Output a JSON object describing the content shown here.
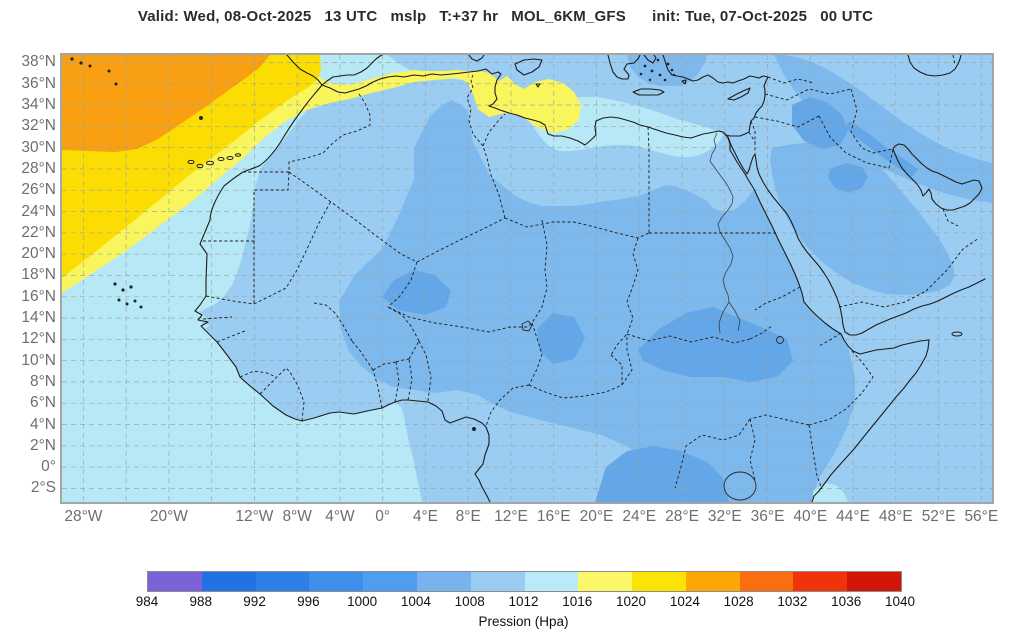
{
  "title": "Valid: Wed, 08-Oct-2025   13 UTC   mslp   T:+37 hr   MOL_6KM_GFS      init: Tue, 07-Oct-2025   00 UTC",
  "map": {
    "y_ticks": [
      {
        "lat": 38,
        "label": "38°N"
      },
      {
        "lat": 36,
        "label": "36°N"
      },
      {
        "lat": 34,
        "label": "34°N"
      },
      {
        "lat": 32,
        "label": "32°N"
      },
      {
        "lat": 30,
        "label": "30°N"
      },
      {
        "lat": 28,
        "label": "28°N"
      },
      {
        "lat": 26,
        "label": "26°N"
      },
      {
        "lat": 24,
        "label": "24°N"
      },
      {
        "lat": 22,
        "label": "22°N"
      },
      {
        "lat": 20,
        "label": "20°N"
      },
      {
        "lat": 18,
        "label": "18°N"
      },
      {
        "lat": 16,
        "label": "16°N"
      },
      {
        "lat": 14,
        "label": "14°N"
      },
      {
        "lat": 12,
        "label": "12°N"
      },
      {
        "lat": 10,
        "label": "10°N"
      },
      {
        "lat": 8,
        "label": "8°N"
      },
      {
        "lat": 6,
        "label": "6°N"
      },
      {
        "lat": 4,
        "label": "4°N"
      },
      {
        "lat": 2,
        "label": "2°N"
      },
      {
        "lat": 0,
        "label": "0°"
      },
      {
        "lat": -2,
        "label": "2°S"
      }
    ],
    "x_ticks": [
      {
        "lon": -28,
        "label": "28°W"
      },
      {
        "lon": -20,
        "label": "20°W"
      },
      {
        "lon": -12,
        "label": "12°W"
      },
      {
        "lon": -8,
        "label": "8°W"
      },
      {
        "lon": -4,
        "label": "4°W"
      },
      {
        "lon": 0,
        "label": "0°"
      },
      {
        "lon": 4,
        "label": "4°E"
      },
      {
        "lon": 8,
        "label": "8°E"
      },
      {
        "lon": 12,
        "label": "12°E"
      },
      {
        "lon": 16,
        "label": "16°E"
      },
      {
        "lon": 20,
        "label": "20°E"
      },
      {
        "lon": 24,
        "label": "24°E"
      },
      {
        "lon": 28,
        "label": "28°E"
      },
      {
        "lon": 32,
        "label": "32°E"
      },
      {
        "lon": 36,
        "label": "36°E"
      },
      {
        "lon": 40,
        "label": "40°E"
      },
      {
        "lon": 44,
        "label": "44°E"
      },
      {
        "lon": 48,
        "label": "48°E"
      },
      {
        "lon": 52,
        "label": "52°E"
      },
      {
        "lon": 56,
        "label": "56°E"
      }
    ],
    "grid_lons": [
      -28,
      -24,
      -20,
      -16,
      -12,
      -8,
      -4,
      0,
      4,
      8,
      12,
      16,
      20,
      24,
      28,
      32,
      36,
      40,
      44,
      48,
      52,
      56
    ],
    "grid_lats": [
      38,
      36,
      34,
      32,
      30,
      28,
      26,
      24,
      22,
      20,
      18,
      16,
      14,
      12,
      10,
      8,
      6,
      4,
      2,
      0,
      -2
    ],
    "field_colors": {
      "p1000": "#63A7E8",
      "p1004": "#7EB9ED",
      "p1008": "#9BCDF2",
      "p1012": "#B7E8F5",
      "p1016": "#F9F55C",
      "p1020": "#FBDD04",
      "p1024": "#F99F12"
    }
  },
  "colorbar": {
    "label": "Pression (Hpa)",
    "values": [
      984,
      988,
      992,
      996,
      1000,
      1004,
      1008,
      1012,
      1016,
      1020,
      1024,
      1028,
      1032,
      1036,
      1040
    ],
    "colors": [
      "#7B62D9",
      "#2173E4",
      "#2E80E9",
      "#3F8EEB",
      "#4F9DEF",
      "#79B3ED",
      "#9ACCF2",
      "#BAE9F7",
      "#FAF768",
      "#FBE303",
      "#FCA703",
      "#FB6E10",
      "#F1330C",
      "#D31508"
    ]
  }
}
